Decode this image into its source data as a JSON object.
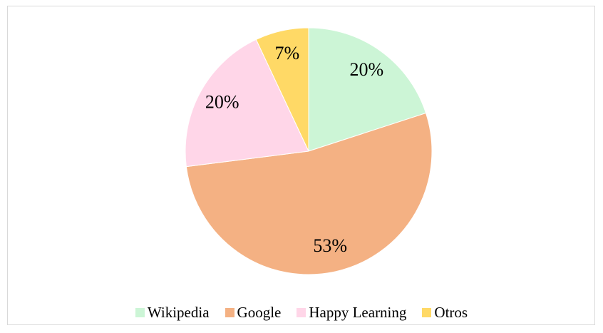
{
  "chart_data": {
    "type": "pie",
    "categories": [
      "Wikipedia",
      "Google",
      "Happy Learning",
      "Otros"
    ],
    "values": [
      20,
      53,
      20,
      7
    ],
    "value_labels": [
      "20%",
      "53%",
      "20%",
      "7%"
    ],
    "colors": [
      "#ccf5d6",
      "#f4b183",
      "#ffd6e8",
      "#ffd966"
    ],
    "legend": "bottom"
  }
}
